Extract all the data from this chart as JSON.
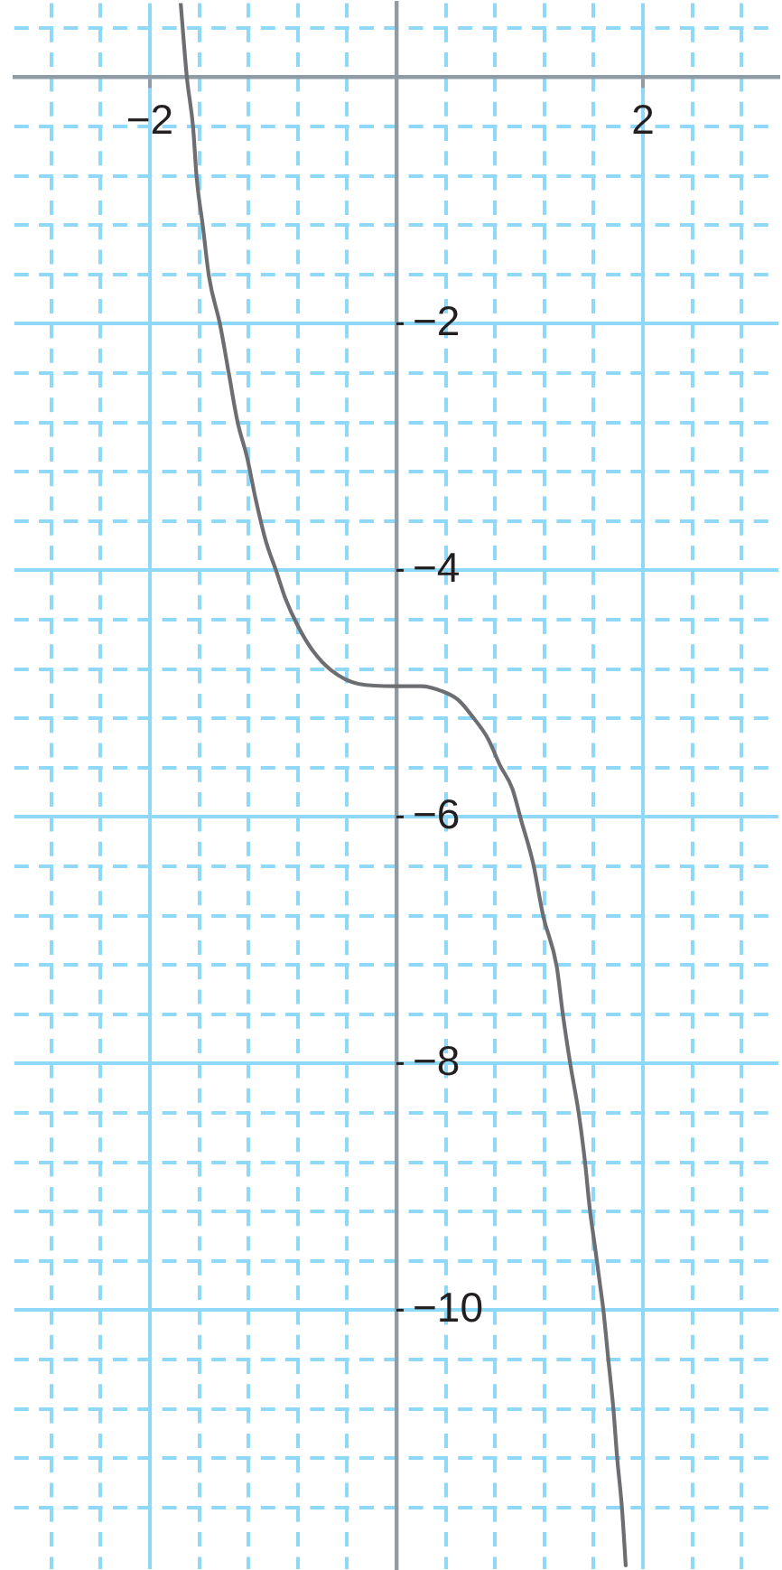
{
  "chart_data": {
    "type": "line",
    "x": [
      -1.75,
      -1.7,
      -1.65,
      -1.62,
      -1.57,
      -1.52,
      -1.43,
      -1.36,
      -1.29,
      -1.21,
      -1.14,
      -1.06,
      -0.97,
      -0.9,
      -0.8,
      -0.68,
      -0.53,
      -0.31,
      0,
      0.2,
      0.37,
      0.5,
      0.62,
      0.74,
      0.84,
      0.94,
      1.01,
      1.11,
      1.19,
      1.3,
      1.35,
      1.41,
      1.48,
      1.53,
      1.57,
      1.61,
      1.65,
      1.68,
      1.72,
      1.76,
      1.79,
      1.83,
      1.86
    ],
    "series": [
      {
        "color": "#6d6e71",
        "values": [
          0.6,
          0,
          -0.4,
          -0.82,
          -1.21,
          -1.62,
          -2.01,
          -2.4,
          -2.79,
          -3.09,
          -3.43,
          -3.76,
          -4.02,
          -4.23,
          -4.45,
          -4.65,
          -4.81,
          -4.92,
          -4.94,
          -4.94,
          -4.98,
          -5.05,
          -5.19,
          -5.36,
          -5.58,
          -5.77,
          -6.02,
          -6.38,
          -6.8,
          -7.21,
          -7.6,
          -8,
          -8.41,
          -8.8,
          -9.19,
          -9.48,
          -9.78,
          -10.01,
          -10.41,
          -10.8,
          -11.19,
          -11.61,
          -12.07
        ]
      }
    ],
    "xlim": [
      -3.1,
      3.1
    ],
    "ylim": [
      -12.1,
      0.6
    ],
    "xticks": [
      {
        "value": -2.8,
        "label": null
      },
      {
        "value": -2.4,
        "label": null
      },
      {
        "value": -2,
        "label": "−2"
      },
      {
        "value": -1.6,
        "label": null
      },
      {
        "value": -1.2,
        "label": null
      },
      {
        "value": -0.8,
        "label": null
      },
      {
        "value": -0.4,
        "label": null
      },
      {
        "value": 0,
        "label": null
      },
      {
        "value": 0.4,
        "label": null
      },
      {
        "value": 0.8,
        "label": null
      },
      {
        "value": 1.2,
        "label": null
      },
      {
        "value": 1.6,
        "label": null
      },
      2,
      {
        "value": 2.4,
        "label": null
      },
      {
        "value": 2.8,
        "label": null
      }
    ],
    "yticks": [
      {
        "value": -11.6,
        "label": null
      },
      {
        "value": -11.2,
        "label": null
      },
      {
        "value": -10.8,
        "label": null
      },
      {
        "value": -10.4,
        "label": null
      },
      {
        "value": -10,
        "label": "−10"
      },
      {
        "value": -9.6,
        "label": null
      },
      {
        "value": -9.2,
        "label": null
      },
      {
        "value": -8.8,
        "label": null
      },
      {
        "value": -8.4,
        "label": null
      },
      {
        "value": -8,
        "label": "−8"
      },
      {
        "value": -7.6,
        "label": null
      },
      {
        "value": -7.2,
        "label": null
      },
      {
        "value": -6.8,
        "label": null
      },
      {
        "value": -6.4,
        "label": null
      },
      {
        "value": -6,
        "label": "−6"
      },
      {
        "value": -5.6,
        "label": null
      },
      {
        "value": -5.2,
        "label": null
      },
      {
        "value": -4.8,
        "label": null
      },
      {
        "value": -4.4,
        "label": null
      },
      {
        "value": -4,
        "label": "−4"
      },
      {
        "value": -3.6,
        "label": null
      },
      {
        "value": -3.2,
        "label": null
      },
      {
        "value": -2.8,
        "label": null
      },
      {
        "value": -2.4,
        "label": null
      },
      {
        "value": -2,
        "label": "−2"
      },
      {
        "value": -1.6,
        "label": null
      },
      {
        "value": -1.2,
        "label": null
      },
      {
        "value": -0.8,
        "label": null
      },
      {
        "value": -0.4,
        "label": null
      },
      {
        "value": 0,
        "label": null
      },
      {
        "value": 0.4,
        "label": null
      }
    ],
    "grid": true,
    "marker": "none",
    "line_style": "solid"
  }
}
